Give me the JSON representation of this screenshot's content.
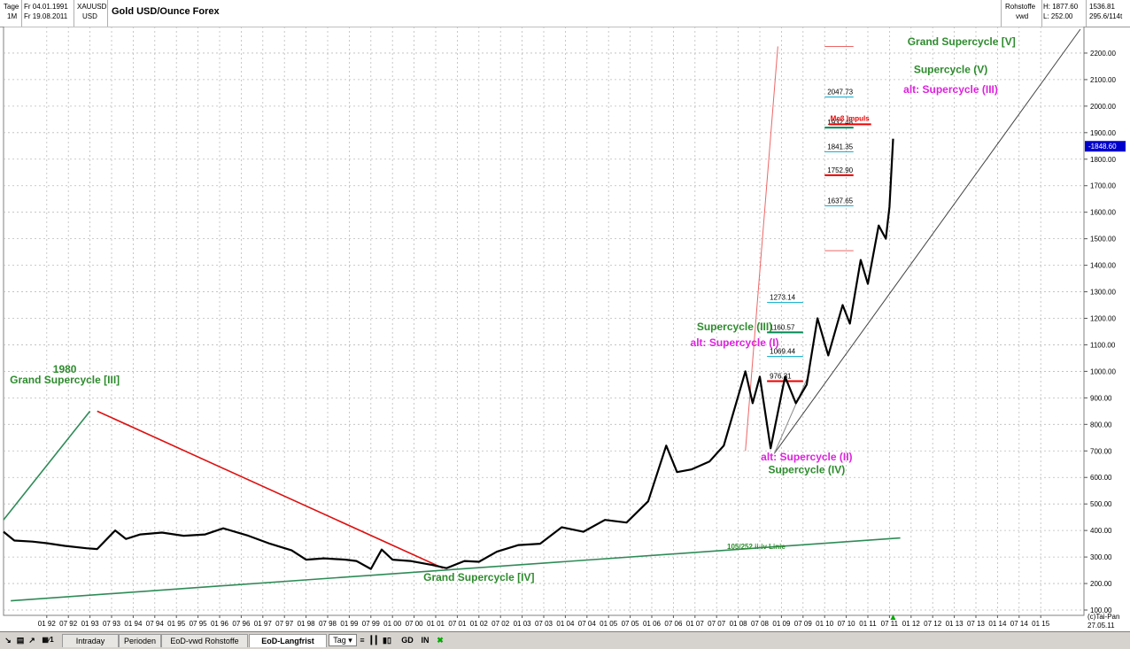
{
  "header": {
    "interval_label": "Tage",
    "period_label": "1M",
    "date_from": "Fr 04.01.1991",
    "date_to": "Fr 19.08.2011",
    "symbol": "XAUUSD",
    "currency": "USD",
    "title": "Gold USD/Ounce  Forex",
    "exchange": "Rohstoffe",
    "exchange2": "vwd",
    "high": "H: 1877.60",
    "low": "L: 252.00",
    "extra1": "1536.81",
    "extra2": "295.6/114t"
  },
  "tabs": [
    {
      "label": "Intraday"
    },
    {
      "label": "Perioden"
    },
    {
      "label": "EoD-vwd Rohstoffe"
    },
    {
      "label": "EoD-Langfrist"
    }
  ],
  "toolbar": {
    "tag_select": "Tag",
    "gd_label": "GD",
    "in_label": "IN"
  },
  "chart_data": {
    "type": "line",
    "title": "Gold USD/Ounce  Forex",
    "ylim": [
      80,
      2300
    ],
    "x_range": [
      "1991-01",
      "2016-01"
    ],
    "yticks": [
      100,
      200,
      300,
      400,
      500,
      600,
      700,
      800,
      900,
      1000,
      1100,
      1200,
      1300,
      1400,
      1500,
      1600,
      1700,
      1800,
      1900,
      2000,
      2100,
      2200
    ],
    "ytick_labels": [
      "100.00",
      "200.00",
      "300.00",
      "400.00",
      "500.00",
      "600.00",
      "700.00",
      "800.00",
      "900.00",
      "1000.00",
      "1100.00",
      "1200.00",
      "1300.00",
      "1400.00",
      "1500.00",
      "1600.00",
      "1700.00",
      "1800.00",
      "1900.00",
      "2000.00",
      "2100.00",
      "2200.00"
    ],
    "xtick_labels": [
      "01 92",
      "07 92",
      "01 93",
      "07 93",
      "01 94",
      "07 94",
      "01 95",
      "07 95",
      "01 96",
      "07 96",
      "01 97",
      "07 97",
      "01 98",
      "07 98",
      "01 99",
      "07 99",
      "01 00",
      "07 00",
      "01 01",
      "07 01",
      "01 02",
      "07 02",
      "01 03",
      "07 03",
      "01 04",
      "07 04",
      "01 05",
      "07 05",
      "01 06",
      "07 06",
      "01 07",
      "07 07",
      "01 08",
      "07 08",
      "01 09",
      "07 09",
      "01 10",
      "07 10",
      "01 11",
      "07 11",
      "01 12",
      "07 12",
      "01 13",
      "07 13",
      "01 14",
      "07 14",
      "01 15"
    ],
    "grid": true,
    "current_price": "1848.60",
    "bottom_right_labels": [
      "(c)Tai-Pan",
      "27.05.11"
    ],
    "series": [
      {
        "color": "#000000",
        "points": [
          [
            "1991-01",
            395
          ],
          [
            "1991-04",
            362
          ],
          [
            "1991-09",
            358
          ],
          [
            "1992-01",
            352
          ],
          [
            "1992-06",
            342
          ],
          [
            "1992-12",
            333
          ],
          [
            "1993-03",
            330
          ],
          [
            "1993-08",
            400
          ],
          [
            "1993-11",
            368
          ],
          [
            "1994-03",
            385
          ],
          [
            "1994-09",
            392
          ],
          [
            "1995-03",
            380
          ],
          [
            "1995-09",
            385
          ],
          [
            "1996-02",
            408
          ],
          [
            "1996-09",
            380
          ],
          [
            "1997-03",
            350
          ],
          [
            "1997-09",
            325
          ],
          [
            "1998-01",
            290
          ],
          [
            "1998-06",
            295
          ],
          [
            "1998-12",
            290
          ],
          [
            "1999-03",
            285
          ],
          [
            "1999-07",
            255
          ],
          [
            "1999-10",
            328
          ],
          [
            "2000-01",
            290
          ],
          [
            "2000-06",
            285
          ],
          [
            "2000-12",
            270
          ],
          [
            "2001-04",
            258
          ],
          [
            "2001-09",
            285
          ],
          [
            "2002-01",
            282
          ],
          [
            "2002-06",
            320
          ],
          [
            "2002-12",
            345
          ],
          [
            "2003-06",
            350
          ],
          [
            "2003-12",
            412
          ],
          [
            "2004-06",
            395
          ],
          [
            "2004-12",
            440
          ],
          [
            "2005-06",
            430
          ],
          [
            "2005-12",
            510
          ],
          [
            "2006-05",
            720
          ],
          [
            "2006-08",
            620
          ],
          [
            "2006-12",
            630
          ],
          [
            "2007-05",
            660
          ],
          [
            "2007-09",
            720
          ],
          [
            "2008-03",
            1000
          ],
          [
            "2008-05",
            880
          ],
          [
            "2008-07",
            980
          ],
          [
            "2008-10",
            710
          ],
          [
            "2009-02",
            980
          ],
          [
            "2009-05",
            880
          ],
          [
            "2009-08",
            950
          ],
          [
            "2009-11",
            1200
          ],
          [
            "2010-02",
            1060
          ],
          [
            "2010-06",
            1250
          ],
          [
            "2010-08",
            1180
          ],
          [
            "2010-11",
            1420
          ],
          [
            "2011-01",
            1330
          ],
          [
            "2011-04",
            1550
          ],
          [
            "2011-06",
            1500
          ],
          [
            "2011-07",
            1620
          ],
          [
            "2011-08",
            1877
          ]
        ]
      }
    ],
    "trendlines": [
      {
        "color": "#2e8b57",
        "from": [
          "1991-01",
          440
        ],
        "to": [
          "1993-01",
          850
        ]
      },
      {
        "color": "#dd1111",
        "from": [
          "1993-03",
          850
        ],
        "to": [
          "2001-03",
          258
        ]
      },
      {
        "color": "#2e8b57",
        "from": [
          "1991-03",
          135
        ],
        "to": [
          "2011-10",
          372
        ]
      },
      {
        "color": "#444444",
        "from": [
          "2008-11",
          690
        ],
        "to": [
          "2015-12",
          2290
        ]
      },
      {
        "color": "#888888",
        "from": [
          "2008-11",
          690
        ],
        "to": [
          "2009-09",
          1000
        ]
      },
      {
        "color": "#ee6666",
        "from": [
          "2008-03",
          700
        ],
        "to": [
          "2008-12",
          2225
        ]
      }
    ],
    "fib_levels": [
      {
        "label": "2047.73",
        "value": 2047.73,
        "color": "#00aacc"
      },
      {
        "label": "1932.48",
        "value": 1932.48,
        "color": "#008855"
      },
      {
        "label": "1841.35",
        "value": 1841.35,
        "color": "#00aacc"
      },
      {
        "label": "1752.90",
        "value": 1752.9,
        "color": "#ee0000"
      },
      {
        "label": "1637.65",
        "value": 1637.65,
        "color": "#00aacc"
      },
      {
        "label": "1273.14",
        "value": 1273.14,
        "color": "#00aacc"
      },
      {
        "label": "1160.57",
        "value": 1160.57,
        "color": "#008855"
      },
      {
        "label": "1069.44",
        "value": 1069.44,
        "color": "#00aacc"
      },
      {
        "label": "976.31",
        "value": 976.31,
        "color": "#ee0000"
      }
    ],
    "extra_levels": [
      {
        "value": 2225,
        "color": "#ee6666"
      },
      {
        "value": 1455,
        "color": "#ee6666"
      }
    ],
    "annotations": [
      {
        "text": "1980",
        "color": "#2e8b2e",
        "at": [
          "1992-06",
          995
        ]
      },
      {
        "text": "Grand Supercycle [III]",
        "color": "#2e8b2e",
        "at": [
          "1992-06",
          955
        ]
      },
      {
        "text": "Grand Supercycle [IV]",
        "color": "#2e8b2e",
        "at": [
          "2002-01",
          210
        ]
      },
      {
        "text": "105/252 ii-iv Linie",
        "color": "#2e8b2e",
        "at": [
          "2008-06",
          330
        ]
      },
      {
        "text": "Supercycle (III)",
        "color": "#2e8b2e",
        "at": [
          "2007-12",
          1155
        ]
      },
      {
        "text": "alt: Supercycle (I)",
        "color": "#dd22dd",
        "at": [
          "2007-12",
          1095
        ]
      },
      {
        "text": "alt: Supercycle (II)",
        "color": "#dd22dd",
        "at": [
          "2009-08",
          665
        ]
      },
      {
        "text": "Supercycle (IV)",
        "color": "#2e8b2e",
        "at": [
          "2009-08",
          615
        ]
      },
      {
        "text": "Grand Supercycle [V]",
        "color": "#2e8b2e",
        "at": [
          "2013-03",
          2230
        ]
      },
      {
        "text": "Supercycle (V)",
        "color": "#2e8b2e",
        "at": [
          "2012-12",
          2125
        ]
      },
      {
        "text": "alt: Supercycle (III)",
        "color": "#dd22dd",
        "at": [
          "2012-12",
          2050
        ]
      },
      {
        "text": "Meß Impuls",
        "color": "#ee0000",
        "at": [
          "2010-08",
          1945
        ]
      }
    ]
  }
}
